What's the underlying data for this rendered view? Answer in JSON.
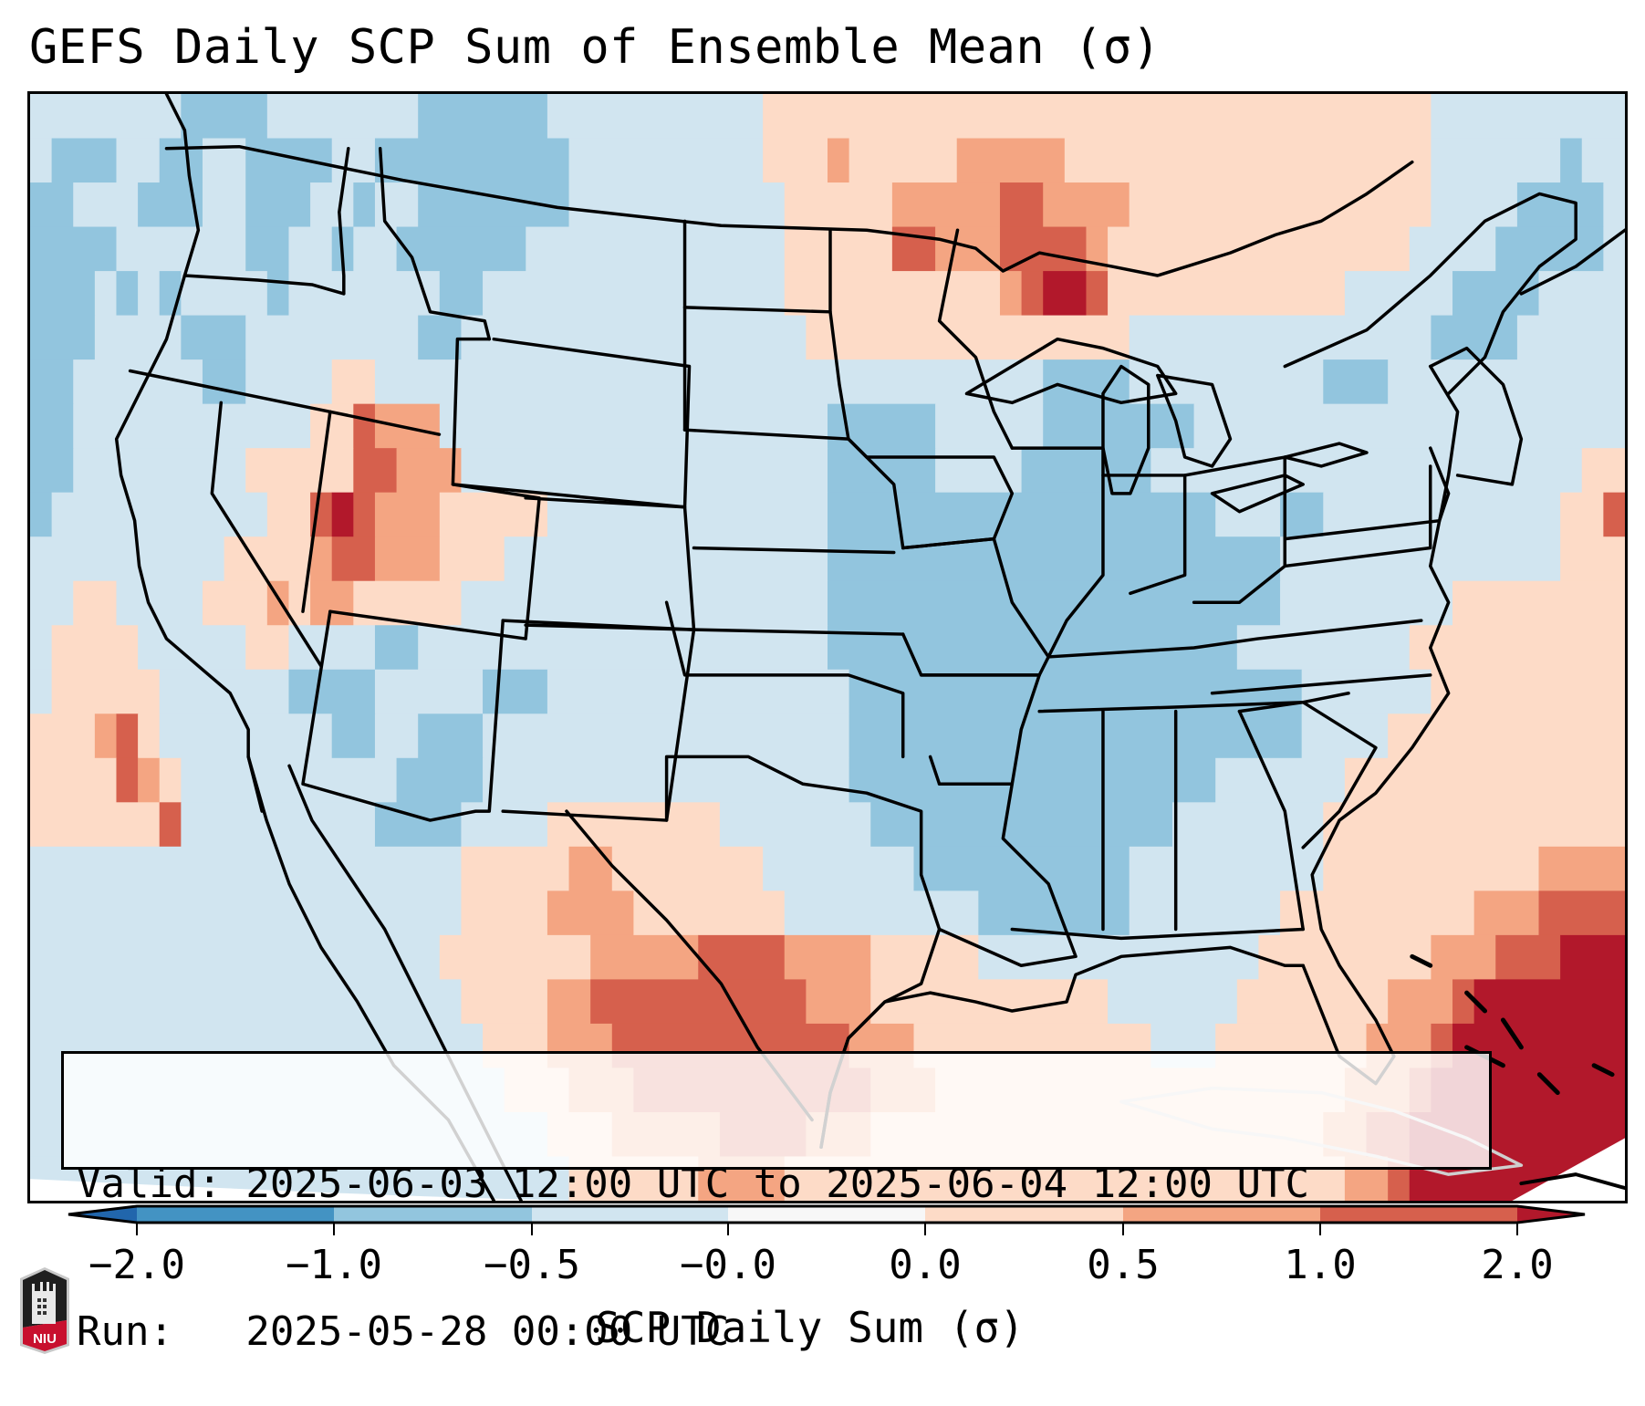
{
  "header": {
    "title": "GEFS Daily SCP Sum of Ensemble Mean (σ)"
  },
  "info_box": {
    "valid_line": "Valid: 2025-06-03 12:00 UTC to 2025-06-04 12:00 UTC",
    "run_line": "Run:   2025-05-28 00:00 UTC",
    "valid_start": "2025-06-03 12:00 UTC",
    "valid_end": "2025-06-04 12:00 UTC",
    "run_time": "2025-05-28 00:00 UTC"
  },
  "colorbar": {
    "label": "SCP Daily Sum (σ)",
    "tick_labels": [
      "−2.0",
      "−1.0",
      "−0.5",
      "−0.0",
      "0.0",
      "0.5",
      "1.0",
      "2.0"
    ],
    "bins": [
      {
        "range": "< -2.0",
        "color": "#2166ac"
      },
      {
        "range": "-2.0 to -1.0",
        "color": "#4393c3"
      },
      {
        "range": "-1.0 to -0.5",
        "color": "#92c5de"
      },
      {
        "range": "-0.5 to -0.0",
        "color": "#d1e5f0"
      },
      {
        "range": "-0.0 to 0.0",
        "color": "#f7f7f7"
      },
      {
        "range": "0.0 to 0.5",
        "color": "#fddbc7"
      },
      {
        "range": "0.5 to 1.0",
        "color": "#f4a582"
      },
      {
        "range": "1.0 to 2.0",
        "color": "#d6604d"
      },
      {
        "range": "> 2.0",
        "color": "#b2182b"
      }
    ],
    "extend": "both"
  },
  "map": {
    "region": "Contiguous United States",
    "features": {
      "state_boundaries": true,
      "coastlines": true
    },
    "field_bins_legend": "grid cell value = colorbar bin index (0..8)",
    "field_grid": [
      "33333332222333333322222233333333335555555555555555555555555555555333333333",
      "32223322332222332222222223333333335556555556666655555555555555555333333233",
      "22333222332223323322222223333333333555556666677666655555555555555333322223",
      "22223333332233233222222333333333333555557766677776555555555555553333222223",
      "22232323333233333332233333333333333555555555567887555555555553333322223333",
      "22233332223333333322333333333333333355555555555555533333333333333222233333",
      "22333333223333553333333333333333333333333333333222233333333322233333333333",
      "22333333333335576663333333333333333332222233333222222233333333333333333333",
      "22333333335555577666333333333333333332222233332222223333333333333333333355",
      "23333333333557876665555533333333333332222222222222222223332233333333333557",
      "33333333355556776665553333333333333332222222222222222222223333333333333555",
      "33553333555656655555333333333333333332222222222222222222223333333355555555",
      "35555333335533332233333333333333333332222222222222222222333333335555555555",
      "35555533333322223333322233333333333333222222222222222222222333333555555555",
      "55567533333333223322233333333333333333222222222222222222222333355555555555",
      "55557653333333333222233333333333333333222222222222222223333335555555555555",
      "55555573333333332222333355555555333333322222222222222333333355555555555555",
      "33333333333333333333555556655555553333333222222222233333333355555555556666",
      "33333333333333333333555566665555555333333333222222233333335555555556667777",
      "33333333333333333335555555666667777666655555333333333333355555555666777888",
      "33333333333333333333555566777777777766655555555555333333555555566678888888",
      "33333333333333333333355566677777777777666555555555553335555555666788888888",
      "33333333333333333333335556667777777777766655555555555555555556667888888888",
      "33333333333333333333333355566666777766655555555555555555555566778888888888",
      "33333333333333333333333335555556666555555555555555555555555556678888888888"
    ]
  }
}
